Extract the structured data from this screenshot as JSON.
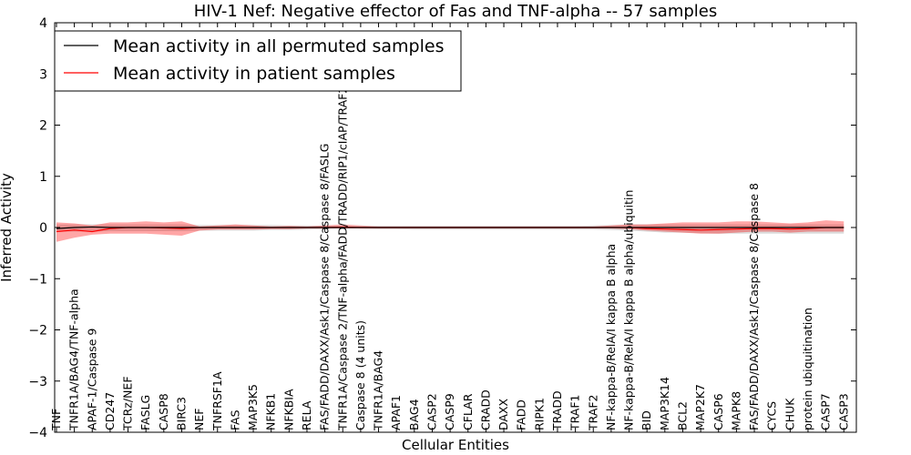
{
  "chart_data": {
    "type": "line",
    "title": "HIV-1 Nef: Negative effector of Fas and TNF-alpha -- 57 samples",
    "xlabel": "Cellular Entities",
    "ylabel": "Inferred Activity",
    "ylim": [
      -4,
      4
    ],
    "yticks": [
      4,
      3,
      2,
      1,
      0,
      -1,
      -2,
      -3,
      -4
    ],
    "ytick_labels": [
      "4",
      "3",
      "2",
      "1",
      "0",
      "−1",
      "−2",
      "−3",
      "−4"
    ],
    "grid": false,
    "legend_position": "top-left",
    "categories": [
      "TNF",
      "TNFR1A/BAG4/TNF-alpha",
      "APAF-1/Caspase 9",
      "CD247",
      "TCRz/NEF",
      "FASLG",
      "CASP8",
      "BIRC3",
      "NEF",
      "TNFRSF1A",
      "FAS",
      "MAP3K5",
      "NFKB1",
      "NFKBIA",
      "RELA",
      "FAS/FADD/DAXX/Ask1/Caspase 8/Caspase 8/FASLG",
      "TNFR1A/Caspase 2/TNF-alpha/FADD/TRADD/RIP1/cIAP/TRAF2",
      "Caspase 8 (4 units)",
      "TNFR1A/BAG4",
      "APAF1",
      "BAG4",
      "CASP2",
      "CASP9",
      "CFLAR",
      "CRADD",
      "DAXX",
      "FADD",
      "RIPK1",
      "TRADD",
      "TRAF1",
      "TRAF2",
      "NF-kappa-B/RelA/I kappa B alpha",
      "NF-kappa-B/RelA/I kappa B alpha/ubiquitin",
      "BID",
      "MAP3K14",
      "BCL2",
      "MAP2K7",
      "CASP6",
      "MAPK8",
      "FAS/FADD/DAXX/Ask1/Caspase 8/Caspase 8",
      "CYCS",
      "CHUK",
      "protein ubiquitination",
      "CASP7",
      "CASP3"
    ],
    "series": [
      {
        "name": "Mean activity in all permuted samples",
        "color": "#000000",
        "values": [
          -0.02,
          0.0,
          0.01,
          0.0,
          0.0,
          0.0,
          0.0,
          0.0,
          0.0,
          0.0,
          0.0,
          0.0,
          0.0,
          0.0,
          0.0,
          0.0,
          0.0,
          0.0,
          0.0,
          0.0,
          0.0,
          0.0,
          0.0,
          0.0,
          0.0,
          0.0,
          0.0,
          0.0,
          0.0,
          0.0,
          0.0,
          0.0,
          0.0,
          0.0,
          0.0,
          0.0,
          0.0,
          0.0,
          0.0,
          0.0,
          0.0,
          0.0,
          0.0,
          0.0,
          0.0
        ],
        "band_low": [
          -0.08,
          -0.08,
          -0.08,
          -0.07,
          -0.07,
          -0.07,
          -0.07,
          -0.07,
          -0.06,
          -0.06,
          -0.06,
          -0.06,
          -0.05,
          -0.05,
          -0.04,
          -0.03,
          -0.02,
          -0.02,
          -0.03,
          -0.03,
          -0.04,
          -0.04,
          -0.04,
          -0.04,
          -0.04,
          -0.04,
          -0.04,
          -0.04,
          -0.04,
          -0.04,
          -0.04,
          -0.05,
          -0.06,
          -0.08,
          -0.1,
          -0.1,
          -0.11,
          -0.12,
          -0.12,
          -0.12,
          -0.12,
          -0.12,
          -0.12,
          -0.12,
          -0.12
        ],
        "band_high": [
          0.06,
          0.06,
          0.06,
          0.06,
          0.06,
          0.06,
          0.06,
          0.06,
          0.05,
          0.05,
          0.05,
          0.05,
          0.05,
          0.04,
          0.04,
          0.03,
          0.02,
          0.02,
          0.03,
          0.03,
          0.03,
          0.03,
          0.03,
          0.03,
          0.03,
          0.03,
          0.03,
          0.03,
          0.03,
          0.03,
          0.04,
          0.05,
          0.06,
          0.06,
          0.06,
          0.06,
          0.06,
          0.06,
          0.06,
          0.06,
          0.06,
          0.06,
          0.06,
          0.06,
          0.06
        ]
      },
      {
        "name": "Mean activity in patient samples",
        "color": "#ff0000",
        "values": [
          -0.08,
          -0.05,
          -0.08,
          -0.02,
          0.0,
          0.0,
          -0.01,
          -0.02,
          0.0,
          0.0,
          0.0,
          0.0,
          0.0,
          0.0,
          0.0,
          0.0,
          0.01,
          0.0,
          0.0,
          0.0,
          0.0,
          0.0,
          0.0,
          0.0,
          0.0,
          0.0,
          0.0,
          0.0,
          0.0,
          0.0,
          0.0,
          0.0,
          0.0,
          -0.02,
          -0.03,
          -0.04,
          -0.05,
          -0.04,
          -0.03,
          -0.02,
          -0.02,
          -0.03,
          -0.02,
          0.0,
          0.0
        ],
        "band_low": [
          -0.28,
          -0.2,
          -0.14,
          -0.12,
          -0.12,
          -0.12,
          -0.14,
          -0.16,
          -0.06,
          -0.04,
          -0.04,
          -0.04,
          -0.03,
          -0.03,
          -0.02,
          -0.02,
          -0.02,
          -0.02,
          -0.02,
          -0.02,
          -0.02,
          -0.02,
          -0.02,
          -0.02,
          -0.02,
          -0.02,
          -0.02,
          -0.02,
          -0.02,
          -0.02,
          -0.02,
          -0.02,
          -0.03,
          -0.06,
          -0.08,
          -0.1,
          -0.12,
          -0.12,
          -0.1,
          -0.08,
          -0.08,
          -0.1,
          -0.08,
          -0.08,
          -0.08
        ],
        "band_high": [
          0.1,
          0.08,
          0.04,
          0.1,
          0.1,
          0.12,
          0.1,
          0.12,
          0.02,
          0.04,
          0.06,
          0.04,
          0.02,
          0.03,
          0.02,
          0.04,
          0.06,
          0.04,
          0.02,
          0.02,
          0.02,
          0.02,
          0.02,
          0.02,
          0.02,
          0.02,
          0.02,
          0.02,
          0.02,
          0.02,
          0.02,
          0.04,
          0.06,
          0.06,
          0.08,
          0.1,
          0.1,
          0.1,
          0.12,
          0.12,
          0.1,
          0.08,
          0.1,
          0.14,
          0.12
        ]
      }
    ]
  }
}
